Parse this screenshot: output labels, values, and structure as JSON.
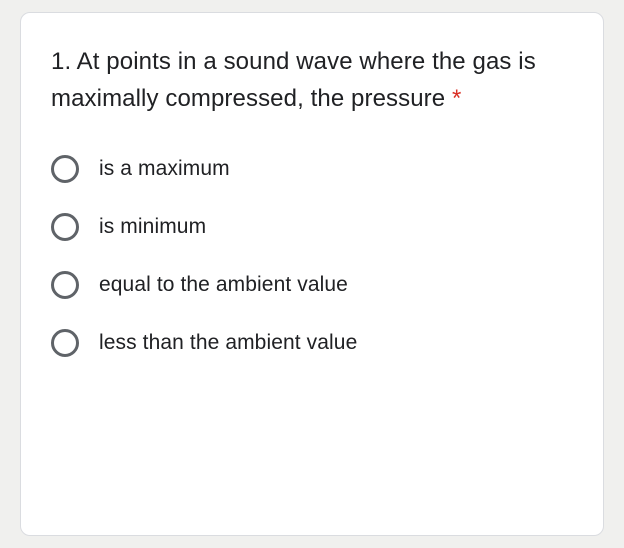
{
  "question": {
    "text": "1. At points in a sound wave where the gas is maximally compressed, the pressure ",
    "required_marker": "*"
  },
  "options": [
    {
      "label": "is a maximum"
    },
    {
      "label": "is minimum"
    },
    {
      "label": "equal to the ambient value"
    },
    {
      "label": "less than the ambient value"
    }
  ],
  "styling": {
    "card_bg": "#ffffff",
    "page_bg": "#f0f0ee",
    "border_color": "#dadce0",
    "text_color": "#202124",
    "asterisk_color": "#d93025",
    "radio_border_color": "#5f6368",
    "question_fontsize": 24,
    "option_fontsize": 21
  }
}
